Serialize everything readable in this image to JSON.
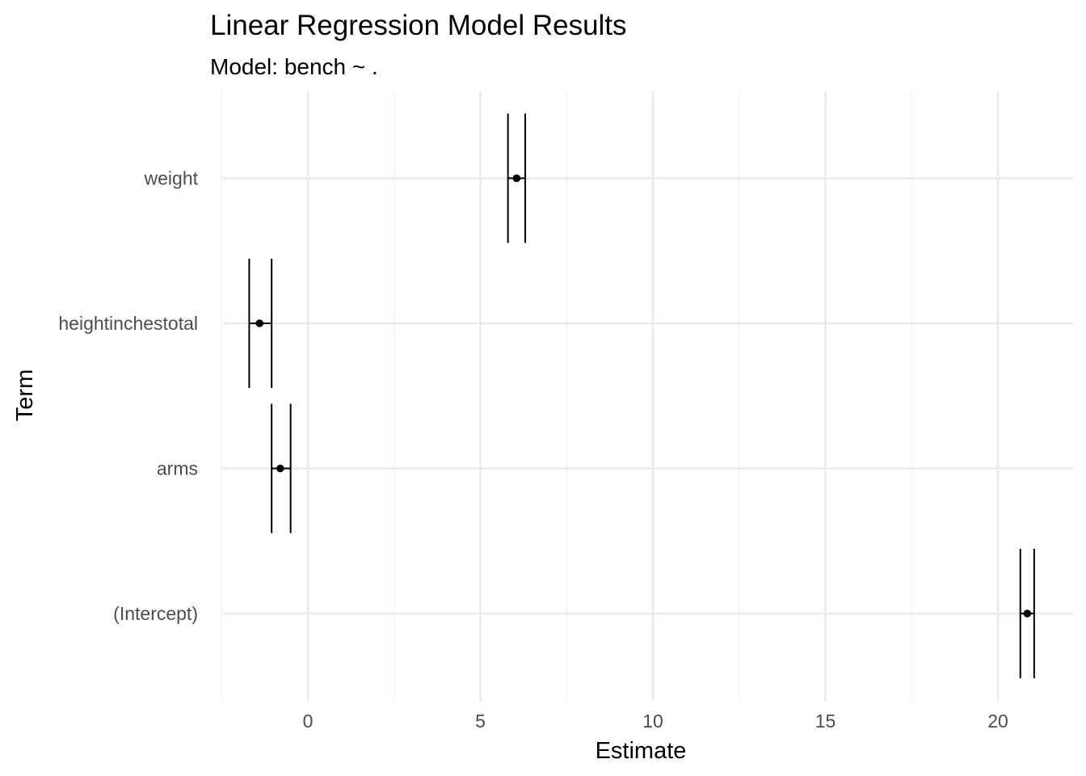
{
  "chart_data": {
    "type": "errorbar",
    "title": "Linear Regression Model Results",
    "subtitle": "Model: bench ~ .",
    "xlabel": "Estimate",
    "ylabel": "Term",
    "xlim": [
      -2.5,
      21.5
    ],
    "x_ticks": [
      0,
      5,
      10,
      15,
      20
    ],
    "x_tick_labels": [
      "0",
      "5",
      "10",
      "15",
      "20"
    ],
    "categories": [
      "(Intercept)",
      "arms",
      "heightinchestotal",
      "weight"
    ],
    "estimates": [
      20.85,
      -0.8,
      -1.4,
      6.05
    ],
    "conf_low": [
      20.65,
      -1.05,
      -1.7,
      5.8
    ],
    "conf_high": [
      21.05,
      -0.5,
      -1.05,
      6.3
    ],
    "grid": true,
    "colors": {
      "point": "#000000",
      "errorbar": "#000000",
      "grid_major": "#ebebeb",
      "grid_minor": "#f2f2f2",
      "tick_label": "#4d4d4d"
    }
  }
}
